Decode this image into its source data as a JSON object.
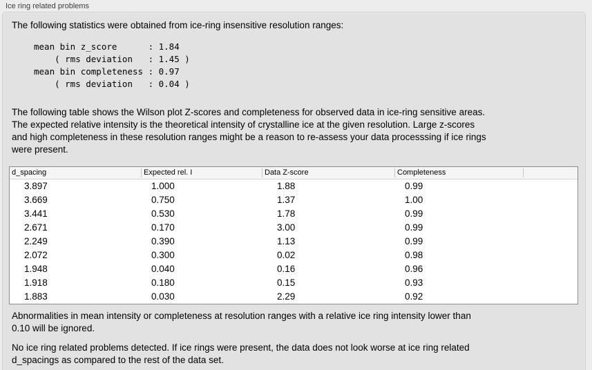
{
  "panel": {
    "title": "Ice ring related problems",
    "colors": {
      "page_bg": "#ededed",
      "box_bg": "#e2e2e2",
      "box_border": "#cfcfcf",
      "table_border": "#8a8a8a",
      "table_header_bg": "#f5f5f5",
      "table_bg": "#ffffff"
    }
  },
  "intro": "The following statistics were obtained from ice-ring insensitive resolution ranges:",
  "stats_block": "mean bin z_score      : 1.84\n    ( rms deviation   : 1.45 )\nmean bin completeness : 0.97\n    ( rms deviation   : 0.04 )",
  "stats": {
    "mean_bin_z_score": "1.84",
    "z_score_rms_deviation": "1.45",
    "mean_bin_completeness": "0.97",
    "completeness_rms_deviation": "0.04"
  },
  "description": "The following table shows the Wilson plot Z-scores and completeness for observed data in ice-ring sensitive areas.\nThe expected relative intensity is the theoretical intensity of crystalline ice at the given resolution. Large z-scores\nand high completeness in these resolution ranges might be a reason to re-assess your data processsing if ice rings\nwere present.",
  "table": {
    "columns": [
      "d_spacing",
      "Expected rel. I",
      "Data Z-score",
      "Completeness",
      ""
    ],
    "rows": [
      [
        "3.897",
        "1.000",
        "1.88",
        "0.99"
      ],
      [
        "3.669",
        "0.750",
        "1.37",
        "1.00"
      ],
      [
        "3.441",
        "0.530",
        "1.78",
        "0.99"
      ],
      [
        "2.671",
        "0.170",
        "3.00",
        "0.99"
      ],
      [
        "2.249",
        "0.390",
        "1.13",
        "0.99"
      ],
      [
        "2.072",
        "0.300",
        "0.02",
        "0.98"
      ],
      [
        "1.948",
        "0.040",
        "0.16",
        "0.96"
      ],
      [
        "1.918",
        "0.180",
        "0.15",
        "0.93"
      ],
      [
        "1.883",
        "0.030",
        "2.29",
        "0.92"
      ]
    ]
  },
  "notes": {
    "ignore_note": "Abnormalities in mean intensity or completeness at resolution ranges with a relative ice ring intensity lower than\n0.10 will be ignored.",
    "conclusion": "No ice ring related problems detected. If ice rings were present, the data does not look worse at ice ring related\nd_spacings as compared to the rest of the data set."
  }
}
